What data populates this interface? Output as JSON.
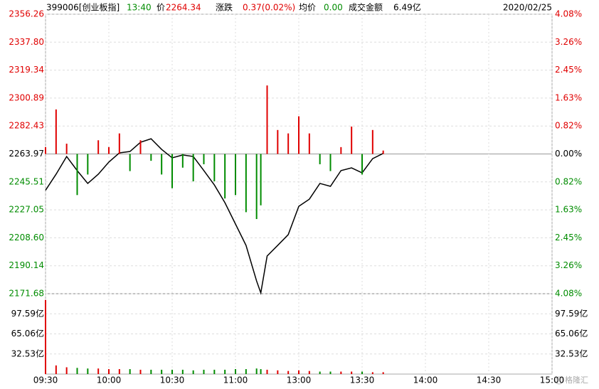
{
  "chart_data": {
    "type": "line",
    "header": {
      "code": "399006[创业板指]",
      "time": "13:40",
      "price_label": "价",
      "price": "2264.34",
      "change_label": "涨跌",
      "change": "0.37(0.02%)",
      "avg_label": "均价",
      "avg": "0.00",
      "amount_label": "成交金额",
      "amount": "6.49亿",
      "date": "2020/02/25"
    },
    "watermark": "格隆汇",
    "up_color": "#e00000",
    "down_color": "#008c00",
    "x": [
      0,
      5,
      10,
      15,
      20,
      25,
      30,
      35,
      40,
      45,
      50,
      55,
      60,
      65,
      70,
      75,
      80,
      85,
      90,
      95,
      100,
      102,
      105,
      110,
      115,
      120,
      125,
      130,
      135,
      140,
      145,
      150,
      155,
      160
    ],
    "xlim": [
      0,
      240
    ],
    "xticks": [
      {
        "value": 0,
        "label": "09:30"
      },
      {
        "value": 30,
        "label": "10:00"
      },
      {
        "value": 60,
        "label": "10:30"
      },
      {
        "value": 90,
        "label": "11:00"
      },
      {
        "value": 120,
        "label": "13:00"
      },
      {
        "value": 150,
        "label": "13:30"
      },
      {
        "value": 180,
        "label": "14:00"
      },
      {
        "value": 210,
        "label": "14:30"
      },
      {
        "value": 240,
        "label": "15:00"
      }
    ],
    "ylim": [
      2171.68,
      2356.26
    ],
    "yticks": [
      2356.26,
      {
        "value": 2337.8,
        "label": "2337.80"
      },
      2319.34,
      2300.89,
      2282.43,
      2263.97,
      2245.51,
      2227.05,
      {
        "value": 2208.6,
        "label": "2208.60"
      },
      2190.14,
      2171.68
    ],
    "y2lim": [
      -4.08,
      4.08
    ],
    "y2ticks": [
      {
        "value": 4.08,
        "label": "4.08%"
      },
      {
        "value": 3.26,
        "label": "3.26%"
      },
      {
        "value": 2.45,
        "label": "2.45%"
      },
      {
        "value": 1.63,
        "label": "1.63%"
      },
      {
        "value": 0.82,
        "label": "0.82%"
      },
      {
        "value": 0,
        "label": "0.00%"
      },
      {
        "value": -0.82,
        "label": "0.82%"
      },
      {
        "value": -1.63,
        "label": "1.63%"
      },
      {
        "value": -2.45,
        "label": "2.45%"
      },
      {
        "value": -3.26,
        "label": "3.26%"
      },
      {
        "value": -4.08,
        "label": "4.08%"
      }
    ],
    "vlim": [
      0,
      130.12
    ],
    "vticks": [
      {
        "value": 97.59,
        "label": "97.59亿"
      },
      {
        "value": 65.06,
        "label": "65.06亿"
      },
      {
        "value": 32.53,
        "label": "32.53亿"
      }
    ],
    "series": [
      {
        "color": "#000000",
        "values": [
          2240,
          2250.6,
          2262.3,
          2253,
          2244.5,
          2250.6,
          2258.6,
          2264.7,
          2265.6,
          2271.7,
          2274,
          2267,
          2261.4,
          2263.3,
          2262.3,
          2253,
          2243.5,
          2231.8,
          2217.7,
          2203.6,
          2180.1,
          2172.2,
          2196.6,
          2203.6,
          2210.7,
          2229.4,
          2234.1,
          2244.5,
          2242.6,
          2253,
          2254.8,
          2251.5,
          2260.9,
          2264.34
        ]
      },
      {
        "type": "bar",
        "axis": "y2",
        "values": [
          0.2,
          1.3,
          0.3,
          -1.2,
          -0.6,
          0.4,
          0.2,
          0.6,
          -0.5,
          0.4,
          -0.2,
          -0.6,
          -1.0,
          -0.4,
          -0.8,
          -0.3,
          -0.8,
          -1.3,
          -1.2,
          -1.7,
          -1.9,
          -1.5,
          2.0,
          0.7,
          0.6,
          1.1,
          0.6,
          -0.3,
          -0.5,
          0.2,
          0.8,
          -0.6,
          0.7,
          0.1
        ]
      },
      {
        "type": "bar",
        "axis": "volume",
        "values": [
          120,
          14,
          11,
          10,
          9,
          9,
          8,
          8,
          8,
          7,
          7,
          7,
          7,
          7,
          6,
          7,
          7,
          7,
          8,
          8,
          9,
          8,
          7,
          6,
          5,
          6,
          5,
          4,
          4,
          4,
          4,
          4,
          3,
          3
        ]
      }
    ]
  }
}
